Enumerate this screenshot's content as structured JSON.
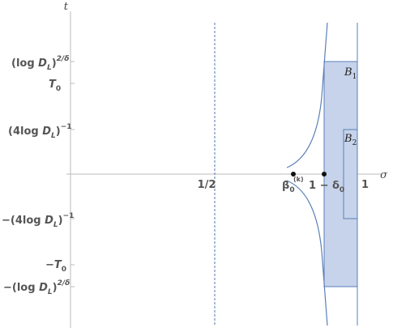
{
  "figure": {
    "axes": {
      "x_label": "σ",
      "y_label": "t"
    },
    "x_ticks": {
      "half": "1/2",
      "beta0_main": "β",
      "beta0_sub": "0",
      "beta0_sup": "(k)",
      "one_minus_delta_prefix": "1 − δ",
      "one_minus_delta_sub": "0",
      "one": "1"
    },
    "y_ticks": {
      "logD_pow_pos": {
        "prefix": "(log ",
        "D": "D",
        "L": "L",
        "close": ")",
        "exp": "2/δ"
      },
      "T0_pos": {
        "T": "T",
        "sub": "0"
      },
      "inv4logD_pos": {
        "prefix": "(4log ",
        "D": "D",
        "L": "L",
        "close": ")",
        "exp": "−1"
      },
      "inv4logD_neg": {
        "prefix": "−(4log ",
        "D": "D",
        "L": "L",
        "close": ")",
        "exp": "−1"
      },
      "T0_neg": {
        "T": "−T",
        "sub": "0"
      },
      "logD_pow_neg": {
        "prefix": "−(log ",
        "D": "D",
        "L": "L",
        "close": ")",
        "exp": "2/δ"
      }
    },
    "regions": {
      "B1": {
        "letter": "B",
        "sub": "1"
      },
      "B2": {
        "letter": "B",
        "sub": "2"
      }
    },
    "colors": {
      "axis": "#bbbbbb",
      "curve": "#5a7fb8",
      "region_fill": "#c6d3ea",
      "region_stroke": "#5a7fb8",
      "dashed_line": "#6a8fbf",
      "point": "#111111"
    }
  }
}
